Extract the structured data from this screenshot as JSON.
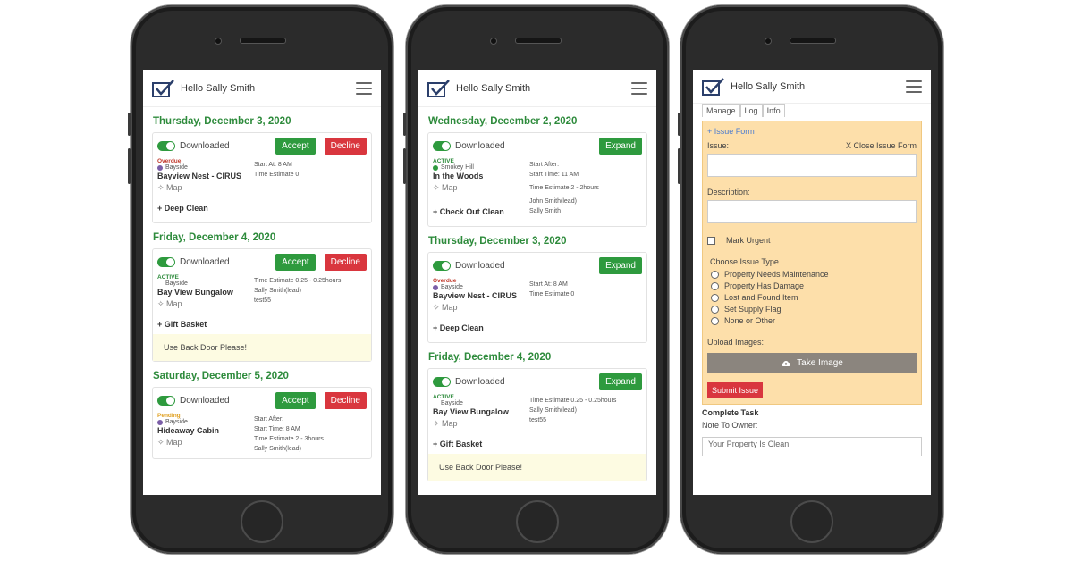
{
  "app": {
    "greeting": "Hello Sally Smith"
  },
  "colors": {
    "accent_green": "#2e9a3e",
    "danger_red": "#d9363e",
    "issue_bg": "#fddfaa",
    "note_bg": "#fdfbe2"
  },
  "phone1": {
    "days": [
      {
        "date": "Thursday, December 3, 2020",
        "toggle": "Downloaded",
        "accept": "Accept",
        "decline": "Decline",
        "status": "Overdue",
        "area": "Bayside",
        "property": "Bayview Nest - CIRUS",
        "map": "✧ Map",
        "details": [
          "Start At: 8 AM",
          "Time Estimate 0"
        ],
        "task": "+  Deep Clean"
      },
      {
        "date": "Friday, December 4, 2020",
        "toggle": "Downloaded",
        "accept": "Accept",
        "decline": "Decline",
        "status": "ACTIVE",
        "area": "Bayside",
        "property": "Bay View Bungalow",
        "map": "✧ Map",
        "details": [
          "Time Estimate 0.25 - 0.25hours",
          "Sally Smith(lead)",
          "test55"
        ],
        "task": "+  Gift Basket",
        "note": "Use Back Door Please!"
      },
      {
        "date": "Saturday, December 5, 2020",
        "toggle": "Downloaded",
        "accept": "Accept",
        "decline": "Decline",
        "status": "Pending",
        "area": "Bayside",
        "property": "Hideaway Cabin",
        "map": "✧ Map",
        "details": [
          "Start After:",
          "Start Time: 8 AM",
          "Time Estimate 2 - 3hours",
          "Sally Smith(lead)"
        ]
      }
    ]
  },
  "phone2": {
    "days": [
      {
        "date": "Wednesday, December 2, 2020",
        "toggle": "Downloaded",
        "expand": "Expand",
        "status": "ACTIVE",
        "area": "Smokey Hill",
        "property": "In the Woods",
        "map": "✧ Map",
        "details": [
          "Start After:",
          "Start Time: 11 AM",
          "Time Estimate 2 - 2hours",
          "John Smith(lead)",
          "Sally Smith"
        ],
        "task": "+  Check Out Clean"
      },
      {
        "date": "Thursday, December 3, 2020",
        "toggle": "Downloaded",
        "expand": "Expand",
        "status": "Overdue",
        "area": "Bayside",
        "property": "Bayview Nest - CIRUS",
        "map": "✧ Map",
        "details": [
          "Start At: 8 AM",
          "Time Estimate 0"
        ],
        "task": "+  Deep Clean"
      },
      {
        "date": "Friday, December 4, 2020",
        "toggle": "Downloaded",
        "expand": "Expand",
        "status": "ACTIVE",
        "area": "Bayside",
        "property": "Bay View Bungalow",
        "map": "✧ Map",
        "details": [
          "Time Estimate 0.25 - 0.25hours",
          "Sally Smith(lead)",
          "test55"
        ],
        "task": "+  Gift Basket",
        "note": "Use Back Door Please!"
      }
    ]
  },
  "phone3": {
    "tabs": [
      "Manage",
      "Log",
      "Info"
    ],
    "issue_form": {
      "title": "+  Issue Form",
      "close": "X  Close Issue Form",
      "issue_label": "Issue:",
      "description_label": "Description:",
      "urgent_label": "Mark Urgent",
      "type_label": "Choose Issue Type",
      "types": [
        "Property Needs Maintenance",
        "Property Has Damage",
        "Lost and Found Item",
        "Set Supply Flag",
        "None or Other"
      ],
      "upload_label": "Upload Images:",
      "take_image": "Take Image",
      "submit": "Submit Issue"
    },
    "complete_task": "Complete Task",
    "note_label": "Note To Owner:",
    "note_value": "Your Property Is Clean"
  }
}
